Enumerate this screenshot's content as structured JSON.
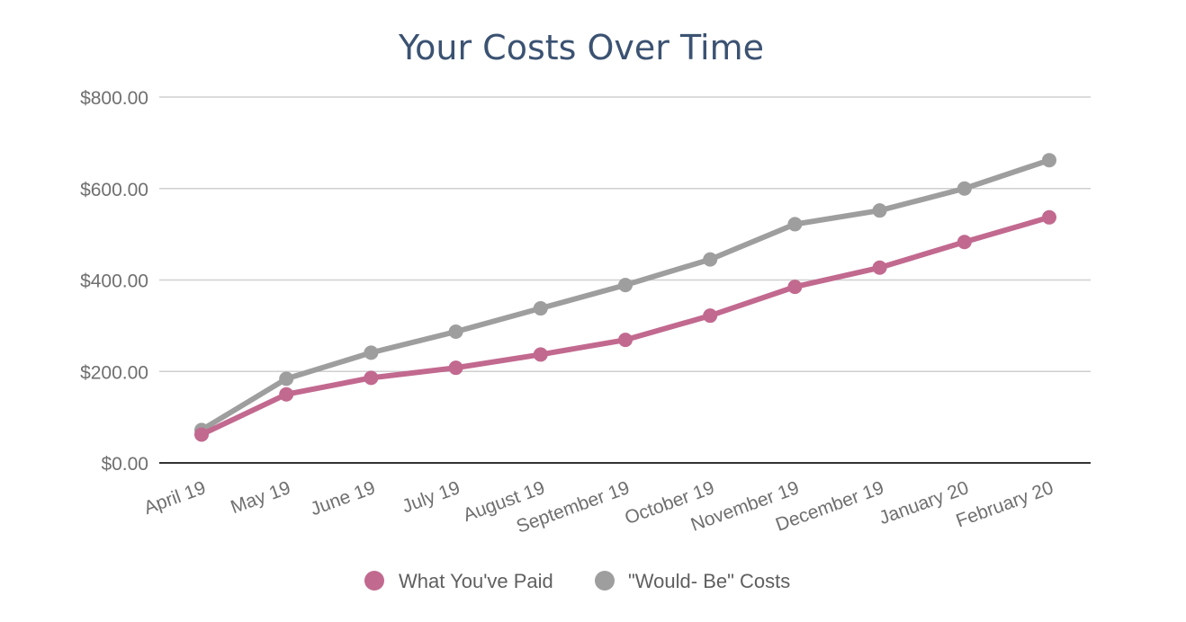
{
  "chart_data": {
    "type": "line",
    "title": "Your Costs Over Time",
    "xlabel": "",
    "ylabel": "",
    "categories": [
      "April 19",
      "May 19",
      "June 19",
      "July 19",
      "August 19",
      "September 19",
      "October 19",
      "November 19",
      "December 19",
      "January 20",
      "February 20"
    ],
    "ylim": [
      0,
      800
    ],
    "yticks": [
      {
        "value": 0,
        "label": "$0.00"
      },
      {
        "value": 200,
        "label": "$200.00"
      },
      {
        "value": 400,
        "label": "$400.00"
      },
      {
        "value": 600,
        "label": "$600.00"
      },
      {
        "value": 800,
        "label": "$800.00"
      }
    ],
    "grid": true,
    "legend_position": "bottom",
    "series": [
      {
        "name": "What You've Paid",
        "color": "#c2698f",
        "values": [
          62,
          150,
          186,
          208,
          237,
          269,
          322,
          385,
          427,
          483,
          537
        ]
      },
      {
        "name": "\"Would- Be\" Costs",
        "color": "#9e9e9e",
        "values": [
          72,
          184,
          241,
          287,
          338,
          389,
          445,
          522,
          552,
          600,
          662
        ]
      }
    ]
  }
}
